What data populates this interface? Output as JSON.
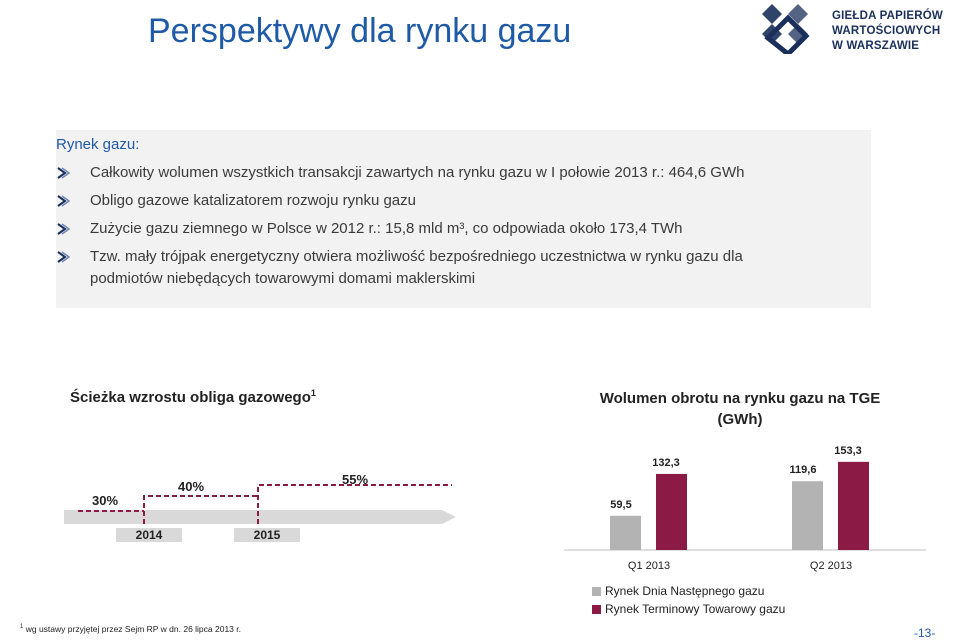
{
  "page": {
    "title": "Perspektywy dla rynku gazu",
    "logo_lines": [
      "GIEŁDA PAPIERÓW",
      "WARTOŚCIOWYCH",
      "W WARSZAWIE"
    ],
    "page_number": "-13-"
  },
  "market": {
    "heading": "Rynek gazu:",
    "bullets": [
      "Całkowity wolumen wszystkich transakcji zawartych na rynku gazu w I połowie 2013 r.: 464,6 GWh",
      "Obligo gazowe katalizatorem rozwoju rynku gazu",
      "Zużycie gazu ziemnego w Polsce w 2012 r.: 15,8 mld m³, co odpowiada około 173,4 TWh",
      "Tzw. mały trójpak energetyczny otwiera możliwość bezpośredniego uczestnictwa w rynku gazu dla podmiotów niebędących towarowymi domami maklerskimi"
    ]
  },
  "obligo": {
    "title": "Ścieżka wzrostu obliga gazowego",
    "footnote_mark": "1",
    "levels": [
      "30%",
      "40%",
      "55%"
    ],
    "years": [
      "2014",
      "2015"
    ]
  },
  "footnote": {
    "mark": "1",
    "text": "wg ustawy przyjętej przez Sejm RP w dn. 26 lipca 2013 r."
  },
  "chart_data": {
    "type": "bar",
    "title": "Wolumen obrotu na rynku gazu na TGE (GWh)",
    "categories": [
      "Q1 2013",
      "Q2 2013"
    ],
    "series": [
      {
        "name": "Rynek Dnia Następnego gazu",
        "values": [
          59.5,
          119.6
        ],
        "labels": [
          "59,5",
          "119,6"
        ],
        "color": "#b3b3b3"
      },
      {
        "name": "Rynek Terminowy Towarowy gazu",
        "values": [
          132.3,
          153.3
        ],
        "labels": [
          "132,3",
          "153,3"
        ],
        "color": "#8b1a44"
      }
    ],
    "ylim": [
      0,
      160
    ],
    "grid": false,
    "legend": "bottom"
  },
  "colors": {
    "title_blue": "#1f5aa6",
    "accent_red": "#8b1a44",
    "panel_gray": "#f2f2f2"
  }
}
